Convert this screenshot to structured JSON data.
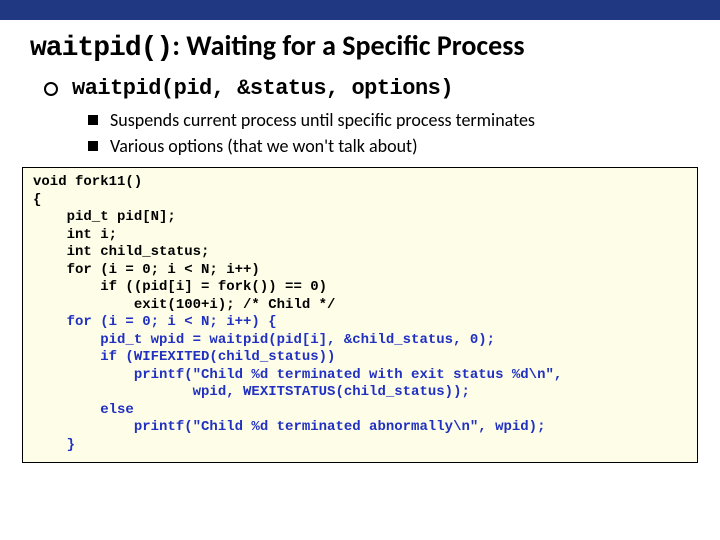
{
  "colors": {
    "top_bar": "#203781",
    "code_bg": "#fefde8",
    "code_blue": "#2030c0"
  },
  "title": {
    "mono": "waitpid()",
    "rest": ": Waiting for a Specific Process"
  },
  "bullet1": "waitpid(pid, &status, options)",
  "sub1": "Suspends current process until specific process terminates",
  "sub2": "Various options (that we won't talk about)",
  "code": {
    "l0": "void fork11()",
    "l1": "{",
    "l2": "    pid_t pid[N];",
    "l3": "    int i;",
    "l4": "    int child_status;",
    "l5": "    for (i = 0; i < N; i++)",
    "l6": "        if ((pid[i] = fork()) == 0)",
    "l7": "            exit(100+i); /* Child */",
    "l8a": "    for (i = 0; i < N; i++) {",
    "l8b": "        pid_t wpid = waitpid(pid[i], &child_status, 0);",
    "l8c": "        if (WIFEXITED(child_status))",
    "l8d": "            printf(\"Child %d terminated with exit status %d\\n\",",
    "l8e": "                   wpid, WEXITSTATUS(child_status));",
    "l8f": "        else",
    "l8g": "            printf(\"Child %d terminated abnormally\\n\", wpid);",
    "l8h": "    }",
    "l9": ""
  }
}
